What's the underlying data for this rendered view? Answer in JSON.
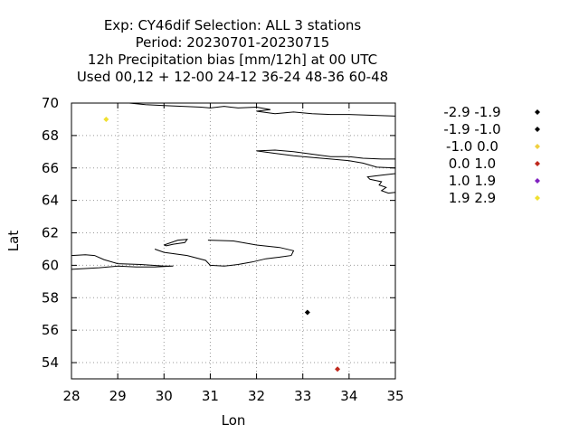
{
  "chart_data": {
    "type": "scatter",
    "title_lines": [
      "Exp: CY46dif   Selection: ALL       3 stations",
      "Period: 20230701-20230715",
      "12h Precipitation bias [mm/12h] at  00 UTC",
      "Used  00,12  + 12-00 24-12 36-24 48-36 60-48"
    ],
    "xlabel": "Lon",
    "ylabel": "Lat",
    "xlim": [
      28,
      35
    ],
    "ylim": [
      53,
      70
    ],
    "xticks": [
      28,
      29,
      30,
      31,
      32,
      33,
      34,
      35
    ],
    "yticks": [
      54,
      56,
      58,
      60,
      62,
      64,
      66,
      68,
      70
    ],
    "grid": true,
    "legend_position": "right",
    "legend": [
      {
        "label": "-2.9 -1.9",
        "color": "#000000"
      },
      {
        "label": "-1.9 -1.0",
        "color": "#000000"
      },
      {
        "label": "-1.0 0.0",
        "color": "#f0d040"
      },
      {
        "label": "0.0 1.0",
        "color": "#c0281c"
      },
      {
        "label": "1.0 1.9",
        "color": "#8020c0"
      },
      {
        "label": "1.9 2.9",
        "color": "#f0e030"
      }
    ],
    "points": [
      {
        "lon": 28.75,
        "lat": 69.0,
        "color": "#f0e030"
      },
      {
        "lon": 33.1,
        "lat": 57.1,
        "color": "#000000"
      },
      {
        "lon": 33.75,
        "lat": 53.6,
        "color": "#c0281c"
      }
    ],
    "coastlines": [
      [
        [
          29.25,
          70
        ],
        [
          29.6,
          69.9
        ],
        [
          30.0,
          69.85
        ],
        [
          30.4,
          69.8
        ],
        [
          30.8,
          69.75
        ],
        [
          31.0,
          69.7
        ],
        [
          31.3,
          69.8
        ],
        [
          31.6,
          69.7
        ],
        [
          32.0,
          69.75
        ],
        [
          32.3,
          69.6
        ],
        [
          32.0,
          69.5
        ],
        [
          32.4,
          69.35
        ],
        [
          32.8,
          69.45
        ],
        [
          33.2,
          69.35
        ],
        [
          33.6,
          69.3
        ],
        [
          34.0,
          69.3
        ],
        [
          34.5,
          69.25
        ],
        [
          35,
          69.2
        ]
      ],
      [
        [
          32.0,
          67.05
        ],
        [
          32.4,
          67.1
        ],
        [
          32.8,
          67.0
        ],
        [
          33.2,
          66.85
        ],
        [
          33.6,
          66.7
        ],
        [
          34.0,
          66.7
        ],
        [
          34.3,
          66.6
        ],
        [
          34.7,
          66.55
        ],
        [
          35,
          66.55
        ]
      ],
      [
        [
          32.0,
          67.05
        ],
        [
          32.4,
          66.9
        ],
        [
          32.8,
          66.75
        ],
        [
          33.2,
          66.65
        ],
        [
          33.6,
          66.55
        ],
        [
          34.0,
          66.45
        ],
        [
          34.3,
          66.3
        ],
        [
          34.6,
          66.05
        ],
        [
          35,
          66.0
        ]
      ],
      [
        [
          35,
          65.65
        ],
        [
          34.7,
          65.55
        ],
        [
          34.4,
          65.45
        ],
        [
          34.45,
          65.3
        ],
        [
          34.7,
          65.15
        ],
        [
          34.65,
          64.95
        ],
        [
          34.8,
          64.8
        ],
        [
          34.7,
          64.6
        ],
        [
          34.85,
          64.45
        ],
        [
          35,
          64.5
        ]
      ],
      [
        [
          30.0,
          61.25
        ],
        [
          30.3,
          61.55
        ],
        [
          30.5,
          61.6
        ],
        [
          30.45,
          61.4
        ],
        [
          30.2,
          61.3
        ],
        [
          30.05,
          61.2
        ],
        [
          30.0,
          61.25
        ]
      ],
      [
        [
          30.95,
          61.55
        ],
        [
          31.5,
          61.5
        ],
        [
          32.0,
          61.25
        ],
        [
          32.5,
          61.1
        ],
        [
          32.8,
          60.9
        ],
        [
          32.75,
          60.6
        ],
        [
          32.5,
          60.5
        ],
        [
          32.2,
          60.4
        ],
        [
          31.9,
          60.2
        ],
        [
          31.6,
          60.05
        ],
        [
          31.3,
          59.95
        ],
        [
          31.0,
          60.0
        ],
        [
          30.9,
          60.3
        ],
        [
          30.5,
          60.6
        ],
        [
          30.0,
          60.8
        ],
        [
          29.8,
          61.0
        ]
      ],
      [
        [
          28,
          60.6
        ],
        [
          28.3,
          60.65
        ],
        [
          28.5,
          60.6
        ],
        [
          28.7,
          60.35
        ],
        [
          29.0,
          60.1
        ],
        [
          29.5,
          60.05
        ],
        [
          30.0,
          59.95
        ],
        [
          30.2,
          59.95
        ],
        [
          29.8,
          59.9
        ],
        [
          29.4,
          59.9
        ],
        [
          29.0,
          59.95
        ],
        [
          28.6,
          59.85
        ],
        [
          28.3,
          59.8
        ],
        [
          28,
          59.75
        ]
      ]
    ]
  }
}
